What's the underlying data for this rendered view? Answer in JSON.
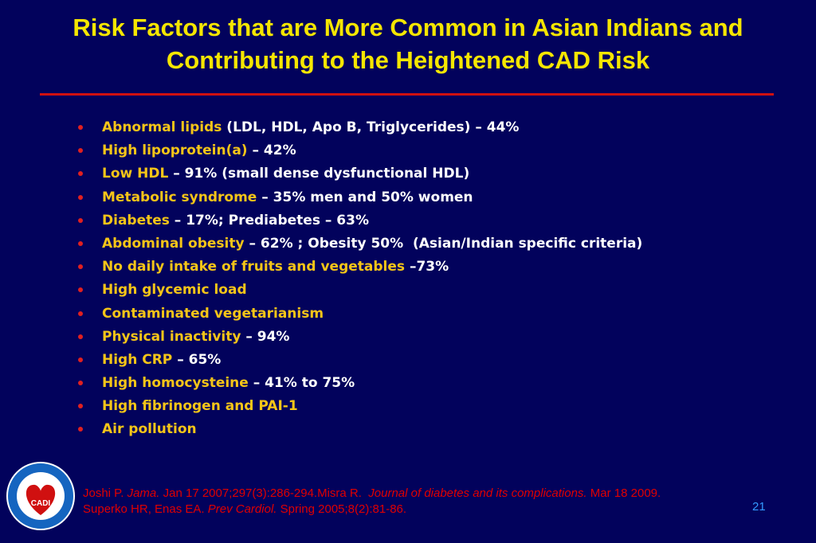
{
  "header": {
    "title": "Risk Factors that are More Common in Asian Indians and Contributing to the Heightened CAD Risk"
  },
  "bullets": [
    [
      {
        "text": "Abnormal lipids",
        "color": "#f5c518"
      },
      {
        "text": " (LDL, HDL, Apo B, Triglycerides) – 44%",
        "color": "#ffffff"
      }
    ],
    [
      {
        "text": "High lipoprotein(a)",
        "color": "#f5c518"
      },
      {
        "text": " – 42%",
        "color": "#ffffff"
      }
    ],
    [
      {
        "text": "Low HDL",
        "color": "#f5c518"
      },
      {
        "text": " – 91% (small dense dysfunctional HDL)",
        "color": "#ffffff"
      }
    ],
    [
      {
        "text": "Metabolic syndrome",
        "color": "#f5c518"
      },
      {
        "text": " – 35% men and 50% women",
        "color": "#ffffff"
      }
    ],
    [
      {
        "text": "Diabetes",
        "color": "#f5c518"
      },
      {
        "text": " – 17%; Prediabetes – 63%",
        "color": "#ffffff"
      }
    ],
    [
      {
        "text": "Abdominal obesity",
        "color": "#f5c518"
      },
      {
        "text": " – 62% ; Obesity 50%  (Asian/Indian specific criteria)",
        "color": "#ffffff"
      }
    ],
    [
      {
        "text": "No daily intake of fruits and vegetables",
        "color": "#f5c518"
      },
      {
        "text": " –73%",
        "color": "#ffffff"
      }
    ],
    [
      {
        "text": "High glycemic load",
        "color": "#f5c518"
      }
    ],
    [
      {
        "text": "Contaminated vegetarianism",
        "color": "#f5c518"
      }
    ],
    [
      {
        "text": "Physical inactivity",
        "color": "#f5c518"
      },
      {
        "text": " – 94%",
        "color": "#ffffff"
      }
    ],
    [
      {
        "text": "High CRP",
        "color": "#f5c518"
      },
      {
        "text": " – 65%",
        "color": "#ffffff"
      }
    ],
    [
      {
        "text": "High homocysteine",
        "color": "#f5c518"
      },
      {
        "text": " – 41% to 75%",
        "color": "#ffffff"
      }
    ],
    [
      {
        "text": "High fibrinogen and PAI-1",
        "color": "#f5c518"
      }
    ],
    [
      {
        "text": "Air pollution",
        "color": "#f5c518"
      }
    ]
  ],
  "references": [
    [
      {
        "text": "Joshi P. ",
        "italic": false
      },
      {
        "text": "Jama.",
        "italic": true
      },
      {
        "text": " Jan 17 2007;297(3):286-294.Misra R.  ",
        "italic": false
      },
      {
        "text": "Journal of diabetes and its complications.",
        "italic": true
      },
      {
        "text": " Mar 18 2009.",
        "italic": false
      }
    ],
    [
      {
        "text": "Superko HR, Enas EA. ",
        "italic": false
      },
      {
        "text": "Prev Cardiol.",
        "italic": true
      },
      {
        "text": " Spring 2005;8(2):81-86.",
        "italic": false
      }
    ]
  ],
  "logo": {
    "label": "CADI"
  },
  "footer": {
    "page_number": "21"
  }
}
